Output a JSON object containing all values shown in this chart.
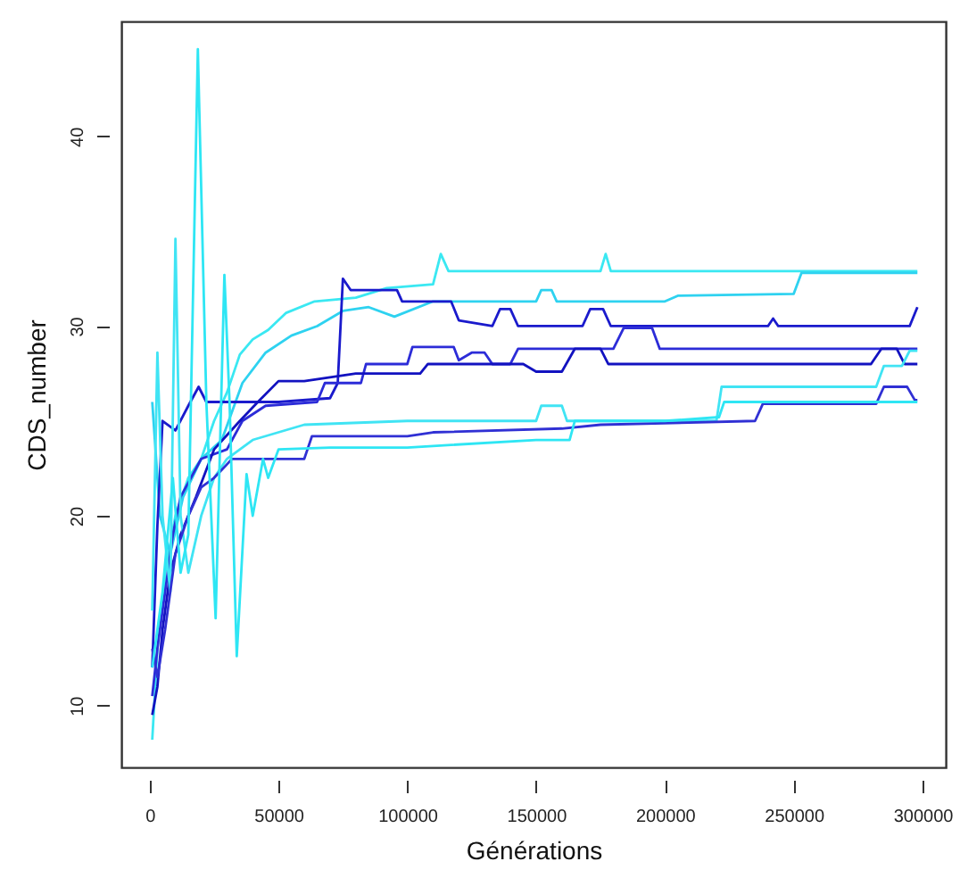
{
  "chart_data": {
    "type": "line",
    "xlabel": "Générations",
    "ylabel": "CDS_number",
    "xlim": [
      -11000,
      309000
    ],
    "ylim": [
      6.74,
      46.06
    ],
    "xticks": [
      0,
      50000,
      100000,
      150000,
      200000,
      250000,
      300000
    ],
    "yticks": [
      10,
      20,
      30,
      40
    ],
    "line_style": "solid",
    "series": [
      {
        "color": "#3ae8f2",
        "x": [
          1000,
          3000,
          6000,
          10000,
          15000,
          20000,
          25000,
          30000,
          35000,
          40000,
          46000,
          53000,
          64000,
          80000,
          92000,
          110000,
          113000,
          116000,
          175000,
          177000,
          179000,
          298000
        ],
        "values": [
          8.2,
          13,
          17,
          20,
          22,
          23,
          25,
          26.5,
          28.5,
          29.3,
          29.8,
          30.7,
          31.3,
          31.5,
          32,
          32.2,
          33.8,
          32.9,
          32.9,
          33.8,
          32.9,
          32.9
        ]
      },
      {
        "color": "#2ed2f0",
        "x": [
          1000,
          4000,
          8000,
          13000,
          20000,
          28000,
          36000,
          45000,
          55000,
          65000,
          75000,
          85000,
          95000,
          110000,
          150000,
          152000,
          156000,
          158000,
          200000,
          205000,
          250000,
          253000,
          298000
        ],
        "values": [
          26,
          20,
          18,
          21,
          23,
          24,
          27,
          28.6,
          29.5,
          30,
          30.8,
          31,
          30.5,
          31.3,
          31.3,
          31.9,
          31.9,
          31.3,
          31.3,
          31.6,
          31.7,
          32.8,
          32.8
        ]
      },
      {
        "color": "#1a1acc",
        "x": [
          1000,
          3000,
          5000,
          10000,
          15000,
          19000,
          22000,
          50000,
          70000,
          73000,
          75000,
          78000,
          96000,
          98000,
          117000,
          120000,
          133000,
          136000,
          140000,
          143000,
          168000,
          171000,
          176000,
          179000,
          240000,
          242000,
          244000,
          295000,
          298000
        ],
        "values": [
          12,
          19.5,
          25,
          24.5,
          25.8,
          26.8,
          26,
          26,
          26.2,
          27,
          32.5,
          31.9,
          31.9,
          31.3,
          31.3,
          30.3,
          30,
          30.9,
          30.9,
          30,
          30,
          30.9,
          30.9,
          30,
          30,
          30.4,
          30,
          30,
          31
        ]
      },
      {
        "color": "#2c2cd8",
        "x": [
          1000,
          3000,
          6000,
          9000,
          12000,
          16000,
          20000,
          30000,
          36000,
          45000,
          65000,
          68000,
          82000,
          84000,
          100000,
          102000,
          118000,
          120000,
          125000,
          130000,
          133000,
          140000,
          143000,
          180000,
          184000,
          195000,
          198000,
          298000
        ],
        "values": [
          10.5,
          13,
          16,
          19,
          21,
          22,
          23,
          23.5,
          25,
          25.8,
          26,
          27,
          27,
          28,
          28,
          28.9,
          28.9,
          28.2,
          28.6,
          28.6,
          28,
          28,
          28.8,
          28.8,
          29.9,
          29.9,
          28.8,
          28.8
        ]
      },
      {
        "color": "#1212c0",
        "x": [
          1000,
          3000,
          5000,
          8000,
          12000,
          18000,
          25000,
          35000,
          42000,
          50000,
          60000,
          80000,
          105000,
          108000,
          145000,
          150000,
          160000,
          165000,
          175000,
          178000,
          280000,
          284000,
          290000,
          293000,
          298000
        ],
        "values": [
          9.5,
          11,
          14,
          17,
          19,
          21,
          23.5,
          25,
          26,
          27.1,
          27.1,
          27.5,
          27.5,
          28,
          28,
          27.6,
          27.6,
          28.8,
          28.8,
          28,
          28,
          28.8,
          28.8,
          28,
          28
        ]
      },
      {
        "color": "#40e4f4",
        "x": [
          1000,
          3000,
          5000,
          8000,
          10000,
          12000,
          15000,
          20000,
          25000,
          30000,
          40000,
          60000,
          100000,
          150000,
          152000,
          160000,
          162000,
          220000,
          222000,
          282000,
          285000,
          292000,
          295000,
          298000
        ],
        "values": [
          15,
          28.6,
          20,
          16,
          34.6,
          20,
          17,
          20,
          22,
          23,
          24,
          24.8,
          25,
          25,
          25.8,
          25.8,
          25,
          25,
          26.8,
          26.8,
          27.9,
          27.9,
          28.7,
          28.7
        ]
      },
      {
        "color": "#3030d4",
        "x": [
          1000,
          3000,
          6000,
          10000,
          15000,
          20000,
          25000,
          32000,
          60000,
          63000,
          100000,
          110000,
          160000,
          175000,
          235000,
          238000,
          282000,
          285000,
          294000,
          297000,
          298000
        ],
        "values": [
          13,
          11.5,
          14,
          18,
          20,
          21.5,
          22,
          23,
          23,
          24.2,
          24.2,
          24.4,
          24.6,
          24.8,
          25,
          25.9,
          25.9,
          26.8,
          26.8,
          26.1,
          26.1
        ]
      },
      {
        "color": "#2ee6f4",
        "x": [
          1000,
          5000,
          9000,
          12000,
          15000,
          18700,
          22000,
          25600,
          29000,
          31000,
          33800,
          37600,
          40000,
          44000,
          46000,
          50000,
          70000,
          100000,
          150000,
          163000,
          165000,
          200000,
          221000,
          223000,
          280000,
          298000
        ],
        "values": [
          12,
          16,
          22,
          17,
          19,
          44.6,
          26,
          14.6,
          32.7,
          26,
          12.6,
          22.2,
          20,
          23,
          22,
          23.5,
          23.6,
          23.6,
          24,
          24,
          25,
          25,
          25.2,
          26,
          26,
          26
        ]
      }
    ]
  }
}
